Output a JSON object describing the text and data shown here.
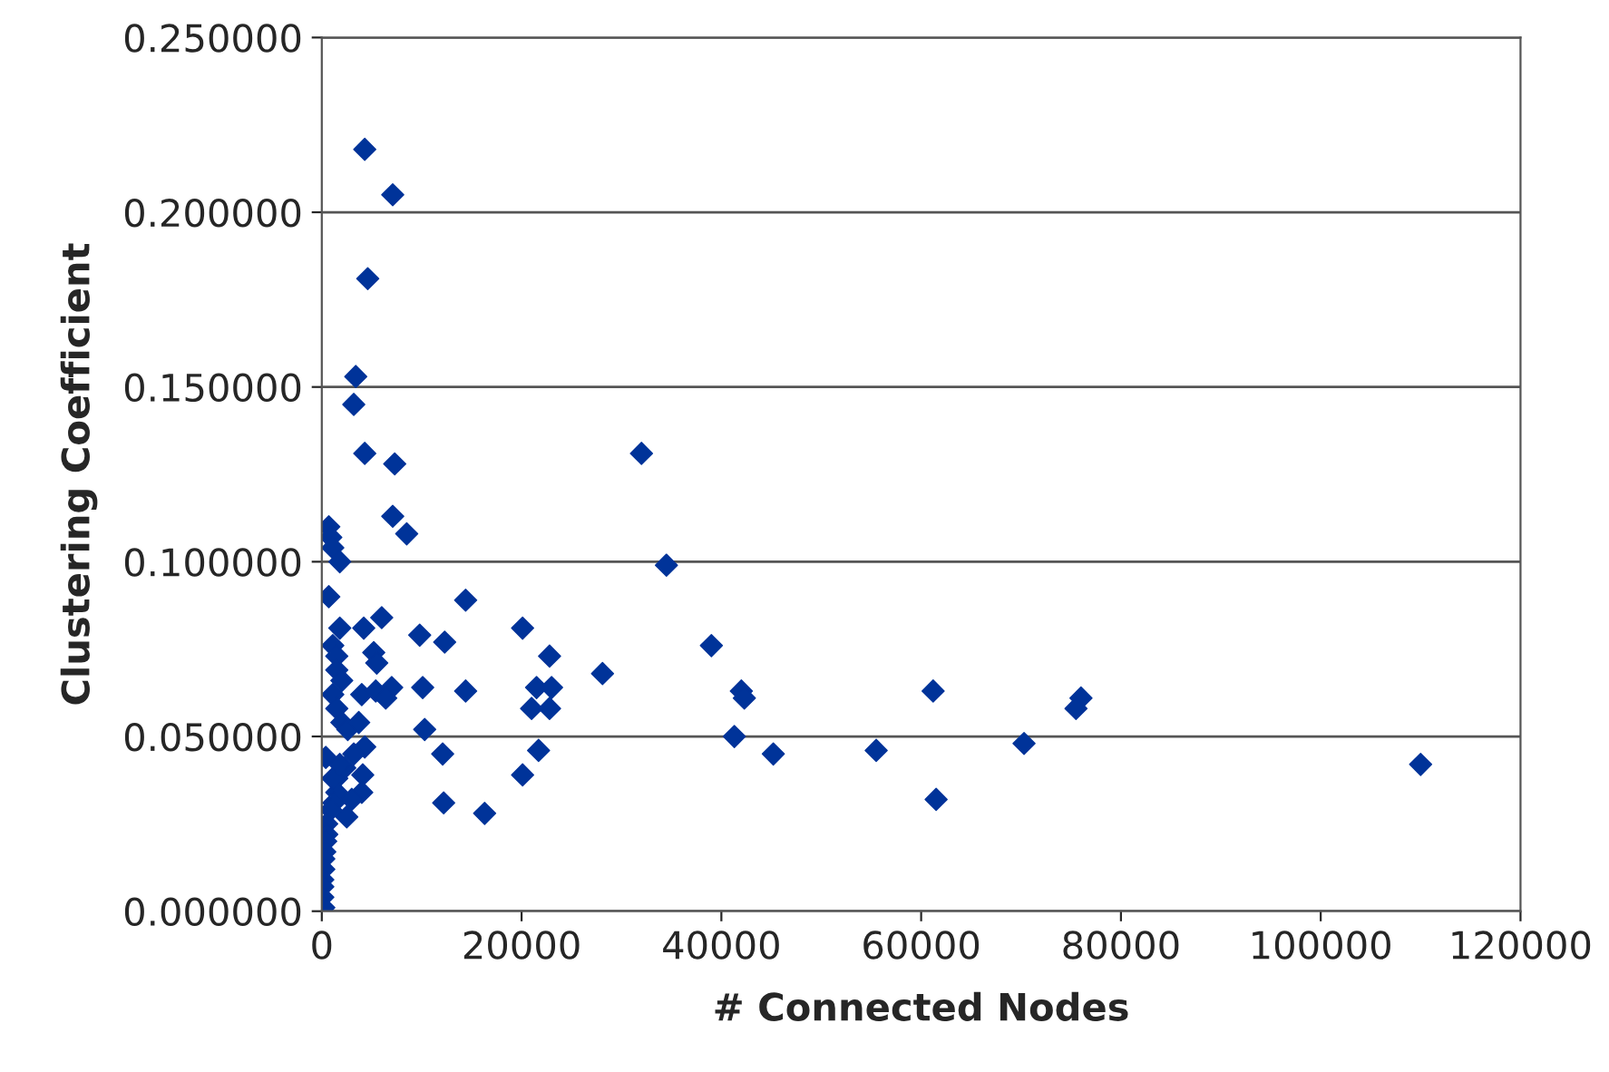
{
  "chart_data": {
    "type": "scatter",
    "xlabel": "# Connected Nodes",
    "ylabel": "Clustering Coefficient",
    "marker": "diamond",
    "grid": "y",
    "legend": false,
    "xlim": [
      0,
      120000
    ],
    "xticks": [
      0,
      20000,
      40000,
      60000,
      80000,
      100000,
      120000
    ],
    "ylim": [
      0,
      0.25
    ],
    "yticks": [
      {
        "value": 0,
        "label": "0.000000"
      },
      {
        "value": 0.05,
        "label": "0.050000"
      },
      {
        "value": 0.1,
        "label": "0.100000"
      },
      {
        "value": 0.15,
        "label": "0.150000"
      },
      {
        "value": 0.2,
        "label": "0.200000"
      },
      {
        "value": 0.25,
        "label": "0.250000"
      }
    ],
    "series": [
      {
        "color": "#003399",
        "x": [
          4300,
          7100,
          4600,
          3400,
          3200,
          4300,
          7300,
          32000,
          7100,
          8500,
          700,
          900,
          1100,
          1800,
          34500,
          700,
          14400,
          4200,
          6000,
          9800,
          12300,
          20100,
          1800,
          39000,
          1100,
          1500,
          5200,
          5500,
          22800,
          28100,
          61200,
          42000,
          42300,
          76000,
          75500,
          1500,
          2000,
          4000,
          5400,
          7000,
          10100,
          14400,
          21500,
          23000,
          21000,
          22800,
          1100,
          1500,
          2000,
          2600,
          3700,
          6400,
          10300,
          4300,
          3200,
          41300,
          45200,
          55500,
          70300,
          21700,
          12100,
          110000,
          61500,
          400,
          1500,
          2300,
          4100,
          4000,
          3000,
          2500,
          12200,
          16300,
          20100,
          1500,
          1200,
          900,
          500,
          500,
          400,
          300,
          200,
          200,
          100,
          100,
          100,
          200,
          1100,
          1800
        ],
        "values": [
          0.218,
          0.205,
          0.181,
          0.153,
          0.145,
          0.131,
          0.128,
          0.131,
          0.113,
          0.108,
          0.11,
          0.107,
          0.104,
          0.1,
          0.099,
          0.09,
          0.089,
          0.081,
          0.084,
          0.079,
          0.077,
          0.081,
          0.081,
          0.076,
          0.076,
          0.073,
          0.074,
          0.071,
          0.073,
          0.068,
          0.063,
          0.063,
          0.061,
          0.061,
          0.058,
          0.069,
          0.066,
          0.062,
          0.063,
          0.064,
          0.064,
          0.063,
          0.064,
          0.064,
          0.058,
          0.058,
          0.062,
          0.058,
          0.054,
          0.052,
          0.054,
          0.061,
          0.052,
          0.047,
          0.045,
          0.05,
          0.045,
          0.046,
          0.048,
          0.046,
          0.045,
          0.042,
          0.032,
          0.044,
          0.038,
          0.041,
          0.039,
          0.034,
          0.032,
          0.027,
          0.031,
          0.028,
          0.039,
          0.034,
          0.031,
          0.029,
          0.025,
          0.022,
          0.02,
          0.017,
          0.015,
          0.012,
          0.009,
          0.007,
          0.004,
          0.001,
          0.038,
          0.042
        ]
      }
    ]
  }
}
